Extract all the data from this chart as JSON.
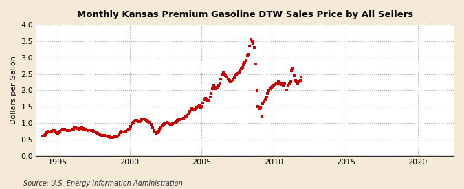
{
  "title": "Monthly Kansas Premium Gasoline DTW Sales Price by All Sellers",
  "ylabel": "Dollars per Gallon",
  "source": "Source: U.S. Energy Information Administration",
  "background_color": "#f5ead8",
  "plot_bg_color": "#ffffff",
  "dot_color": "#cc0000",
  "xlim": [
    1993.5,
    2022.5
  ],
  "ylim": [
    0.0,
    4.0
  ],
  "xticks": [
    1995,
    2000,
    2005,
    2010,
    2015,
    2020
  ],
  "yticks": [
    0.0,
    0.5,
    1.0,
    1.5,
    2.0,
    2.5,
    3.0,
    3.5,
    4.0
  ],
  "data": [
    [
      1993.917,
      0.6
    ],
    [
      1994.083,
      0.62
    ],
    [
      1994.167,
      0.65
    ],
    [
      1994.25,
      0.7
    ],
    [
      1994.333,
      0.74
    ],
    [
      1994.417,
      0.72
    ],
    [
      1994.5,
      0.73
    ],
    [
      1994.583,
      0.75
    ],
    [
      1994.667,
      0.78
    ],
    [
      1994.75,
      0.77
    ],
    [
      1994.833,
      0.73
    ],
    [
      1994.917,
      0.7
    ],
    [
      1995.0,
      0.68
    ],
    [
      1995.083,
      0.7
    ],
    [
      1995.167,
      0.74
    ],
    [
      1995.25,
      0.78
    ],
    [
      1995.333,
      0.8
    ],
    [
      1995.417,
      0.82
    ],
    [
      1995.5,
      0.8
    ],
    [
      1995.583,
      0.78
    ],
    [
      1995.667,
      0.77
    ],
    [
      1995.75,
      0.76
    ],
    [
      1995.833,
      0.76
    ],
    [
      1995.917,
      0.78
    ],
    [
      1996.0,
      0.8
    ],
    [
      1996.083,
      0.82
    ],
    [
      1996.167,
      0.85
    ],
    [
      1996.25,
      0.85
    ],
    [
      1996.333,
      0.84
    ],
    [
      1996.417,
      0.83
    ],
    [
      1996.5,
      0.82
    ],
    [
      1996.583,
      0.83
    ],
    [
      1996.667,
      0.85
    ],
    [
      1996.75,
      0.84
    ],
    [
      1996.833,
      0.82
    ],
    [
      1996.917,
      0.8
    ],
    [
      1997.0,
      0.78
    ],
    [
      1997.083,
      0.77
    ],
    [
      1997.167,
      0.78
    ],
    [
      1997.25,
      0.78
    ],
    [
      1997.333,
      0.77
    ],
    [
      1997.417,
      0.76
    ],
    [
      1997.5,
      0.74
    ],
    [
      1997.583,
      0.72
    ],
    [
      1997.667,
      0.7
    ],
    [
      1997.75,
      0.68
    ],
    [
      1997.833,
      0.67
    ],
    [
      1997.917,
      0.65
    ],
    [
      1998.0,
      0.63
    ],
    [
      1998.083,
      0.62
    ],
    [
      1998.167,
      0.62
    ],
    [
      1998.25,
      0.62
    ],
    [
      1998.333,
      0.61
    ],
    [
      1998.417,
      0.6
    ],
    [
      1998.5,
      0.58
    ],
    [
      1998.583,
      0.57
    ],
    [
      1998.667,
      0.56
    ],
    [
      1998.75,
      0.56
    ],
    [
      1998.833,
      0.56
    ],
    [
      1998.917,
      0.57
    ],
    [
      1999.0,
      0.57
    ],
    [
      1999.083,
      0.58
    ],
    [
      1999.167,
      0.6
    ],
    [
      1999.25,
      0.64
    ],
    [
      1999.333,
      0.7
    ],
    [
      1999.417,
      0.74
    ],
    [
      1999.5,
      0.72
    ],
    [
      1999.583,
      0.72
    ],
    [
      1999.667,
      0.73
    ],
    [
      1999.75,
      0.75
    ],
    [
      1999.833,
      0.78
    ],
    [
      1999.917,
      0.8
    ],
    [
      2000.0,
      0.84
    ],
    [
      2000.083,
      0.9
    ],
    [
      2000.167,
      0.97
    ],
    [
      2000.25,
      1.03
    ],
    [
      2000.333,
      1.06
    ],
    [
      2000.417,
      1.08
    ],
    [
      2000.5,
      1.08
    ],
    [
      2000.583,
      1.05
    ],
    [
      2000.667,
      1.05
    ],
    [
      2000.75,
      1.07
    ],
    [
      2000.833,
      1.1
    ],
    [
      2000.917,
      1.12
    ],
    [
      2001.0,
      1.12
    ],
    [
      2001.083,
      1.1
    ],
    [
      2001.167,
      1.08
    ],
    [
      2001.25,
      1.05
    ],
    [
      2001.333,
      1.02
    ],
    [
      2001.417,
      1.0
    ],
    [
      2001.5,
      0.95
    ],
    [
      2001.583,
      0.85
    ],
    [
      2001.667,
      0.78
    ],
    [
      2001.75,
      0.72
    ],
    [
      2001.833,
      0.68
    ],
    [
      2001.917,
      0.7
    ],
    [
      2002.0,
      0.75
    ],
    [
      2002.083,
      0.8
    ],
    [
      2002.167,
      0.88
    ],
    [
      2002.25,
      0.92
    ],
    [
      2002.333,
      0.95
    ],
    [
      2002.417,
      0.98
    ],
    [
      2002.5,
      1.0
    ],
    [
      2002.583,
      1.02
    ],
    [
      2002.667,
      1.0
    ],
    [
      2002.75,
      0.98
    ],
    [
      2002.833,
      0.95
    ],
    [
      2002.917,
      0.95
    ],
    [
      2003.0,
      0.98
    ],
    [
      2003.083,
      1.0
    ],
    [
      2003.167,
      1.02
    ],
    [
      2003.25,
      1.05
    ],
    [
      2003.333,
      1.08
    ],
    [
      2003.417,
      1.1
    ],
    [
      2003.5,
      1.1
    ],
    [
      2003.583,
      1.12
    ],
    [
      2003.667,
      1.12
    ],
    [
      2003.75,
      1.15
    ],
    [
      2003.833,
      1.18
    ],
    [
      2003.917,
      1.2
    ],
    [
      2004.0,
      1.22
    ],
    [
      2004.083,
      1.28
    ],
    [
      2004.167,
      1.35
    ],
    [
      2004.25,
      1.42
    ],
    [
      2004.333,
      1.45
    ],
    [
      2004.417,
      1.42
    ],
    [
      2004.5,
      1.42
    ],
    [
      2004.583,
      1.45
    ],
    [
      2004.667,
      1.48
    ],
    [
      2004.75,
      1.5
    ],
    [
      2004.833,
      1.52
    ],
    [
      2004.917,
      1.48
    ],
    [
      2005.0,
      1.5
    ],
    [
      2005.083,
      1.6
    ],
    [
      2005.167,
      1.72
    ],
    [
      2005.25,
      1.75
    ],
    [
      2005.333,
      1.72
    ],
    [
      2005.417,
      1.68
    ],
    [
      2005.5,
      1.7
    ],
    [
      2005.583,
      1.8
    ],
    [
      2005.667,
      1.9
    ],
    [
      2005.75,
      2.05
    ],
    [
      2005.833,
      2.15
    ],
    [
      2005.917,
      2.1
    ],
    [
      2006.0,
      2.05
    ],
    [
      2006.083,
      2.1
    ],
    [
      2006.167,
      2.15
    ],
    [
      2006.25,
      2.2
    ],
    [
      2006.333,
      2.35
    ],
    [
      2006.417,
      2.5
    ],
    [
      2006.5,
      2.55
    ],
    [
      2006.583,
      2.5
    ],
    [
      2006.667,
      2.45
    ],
    [
      2006.75,
      2.4
    ],
    [
      2006.833,
      2.35
    ],
    [
      2006.917,
      2.3
    ],
    [
      2007.0,
      2.25
    ],
    [
      2007.083,
      2.28
    ],
    [
      2007.167,
      2.32
    ],
    [
      2007.25,
      2.38
    ],
    [
      2007.333,
      2.45
    ],
    [
      2007.417,
      2.5
    ],
    [
      2007.5,
      2.52
    ],
    [
      2007.583,
      2.55
    ],
    [
      2007.667,
      2.6
    ],
    [
      2007.75,
      2.65
    ],
    [
      2007.833,
      2.7
    ],
    [
      2007.917,
      2.78
    ],
    [
      2008.0,
      2.85
    ],
    [
      2008.083,
      2.92
    ],
    [
      2008.167,
      3.05
    ],
    [
      2008.25,
      3.1
    ],
    [
      2008.333,
      3.35
    ],
    [
      2008.417,
      3.55
    ],
    [
      2008.5,
      3.5
    ],
    [
      2008.583,
      3.42
    ],
    [
      2008.667,
      3.3
    ],
    [
      2008.75,
      2.8
    ],
    [
      2008.833,
      1.98
    ],
    [
      2008.917,
      1.5
    ],
    [
      2009.0,
      1.45
    ],
    [
      2009.083,
      1.48
    ],
    [
      2009.167,
      1.2
    ],
    [
      2009.25,
      1.58
    ],
    [
      2009.333,
      1.65
    ],
    [
      2009.417,
      1.72
    ],
    [
      2009.5,
      1.8
    ],
    [
      2009.583,
      1.9
    ],
    [
      2009.667,
      1.98
    ],
    [
      2009.75,
      2.05
    ],
    [
      2009.833,
      2.1
    ],
    [
      2009.917,
      2.12
    ],
    [
      2010.0,
      2.15
    ],
    [
      2010.083,
      2.18
    ],
    [
      2010.167,
      2.2
    ],
    [
      2010.25,
      2.22
    ],
    [
      2010.333,
      2.25
    ],
    [
      2010.417,
      2.22
    ],
    [
      2010.5,
      2.2
    ],
    [
      2010.583,
      2.18
    ],
    [
      2010.667,
      2.15
    ],
    [
      2010.75,
      2.2
    ],
    [
      2010.833,
      2.0
    ],
    [
      2010.917,
      2.0
    ],
    [
      2011.0,
      2.15
    ],
    [
      2011.083,
      2.2
    ],
    [
      2011.167,
      2.25
    ],
    [
      2011.25,
      2.6
    ],
    [
      2011.333,
      2.65
    ],
    [
      2011.417,
      2.45
    ],
    [
      2011.5,
      2.3
    ],
    [
      2011.583,
      2.25
    ],
    [
      2011.667,
      2.2
    ],
    [
      2011.75,
      2.25
    ],
    [
      2011.833,
      2.3
    ],
    [
      2011.917,
      2.4
    ]
  ]
}
